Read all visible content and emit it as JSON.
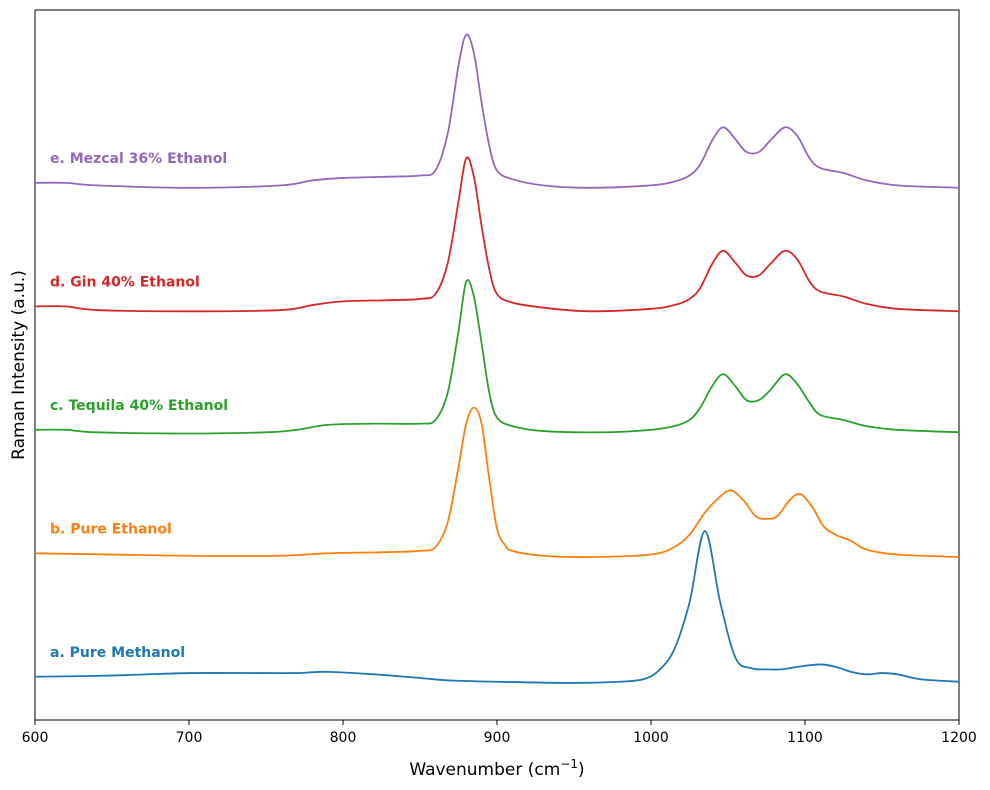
{
  "chart_data": {
    "type": "line",
    "title": "",
    "xlabel": "Wavenumber (cm",
    "xlabel_sup": "−1",
    "xlabel_end": ")",
    "ylabel": "Raman Intensity (a.u.)",
    "xlim": [
      600,
      1200
    ],
    "x_ticks": [
      600,
      700,
      800,
      900,
      1000,
      1100,
      1200
    ],
    "y_ticks_visible": false,
    "grid": false,
    "legend": "none",
    "ylim": [
      -0.35,
      5.4
    ],
    "series": [
      {
        "name": "a. Pure Methanol",
        "color": "#1f77b4",
        "points": [
          [
            600,
            0.0
          ],
          [
            650,
            0.01
          ],
          [
            700,
            0.03
          ],
          [
            750,
            0.03
          ],
          [
            770,
            0.03
          ],
          [
            790,
            0.04
          ],
          [
            820,
            0.02
          ],
          [
            850,
            -0.01
          ],
          [
            870,
            -0.03
          ],
          [
            900,
            -0.04
          ],
          [
            950,
            -0.05
          ],
          [
            980,
            -0.04
          ],
          [
            995,
            -0.02
          ],
          [
            1005,
            0.05
          ],
          [
            1015,
            0.22
          ],
          [
            1025,
            0.6
          ],
          [
            1035,
            1.18
          ],
          [
            1045,
            0.6
          ],
          [
            1055,
            0.15
          ],
          [
            1065,
            0.07
          ],
          [
            1075,
            0.06
          ],
          [
            1085,
            0.06
          ],
          [
            1095,
            0.08
          ],
          [
            1110,
            0.1
          ],
          [
            1120,
            0.08
          ],
          [
            1130,
            0.04
          ],
          [
            1140,
            0.02
          ],
          [
            1150,
            0.03
          ],
          [
            1160,
            0.02
          ],
          [
            1175,
            -0.02
          ],
          [
            1200,
            -0.04
          ]
        ]
      },
      {
        "name": "b. Pure Ethanol",
        "color": "#ff7f0e",
        "points": [
          [
            600,
            1.0
          ],
          [
            650,
            0.99
          ],
          [
            700,
            0.98
          ],
          [
            760,
            0.98
          ],
          [
            790,
            1.0
          ],
          [
            830,
            1.01
          ],
          [
            850,
            1.02
          ],
          [
            860,
            1.05
          ],
          [
            868,
            1.25
          ],
          [
            875,
            1.7
          ],
          [
            880,
            2.05
          ],
          [
            885,
            2.18
          ],
          [
            890,
            2.05
          ],
          [
            895,
            1.6
          ],
          [
            900,
            1.2
          ],
          [
            905,
            1.07
          ],
          [
            910,
            1.02
          ],
          [
            930,
            0.98
          ],
          [
            960,
            0.97
          ],
          [
            1000,
            0.99
          ],
          [
            1015,
            1.05
          ],
          [
            1025,
            1.15
          ],
          [
            1035,
            1.33
          ],
          [
            1045,
            1.46
          ],
          [
            1052,
            1.51
          ],
          [
            1060,
            1.43
          ],
          [
            1068,
            1.3
          ],
          [
            1075,
            1.28
          ],
          [
            1082,
            1.3
          ],
          [
            1090,
            1.43
          ],
          [
            1097,
            1.48
          ],
          [
            1105,
            1.37
          ],
          [
            1112,
            1.22
          ],
          [
            1120,
            1.15
          ],
          [
            1130,
            1.1
          ],
          [
            1140,
            1.03
          ],
          [
            1160,
            0.99
          ],
          [
            1200,
            0.97
          ]
        ]
      },
      {
        "name": "c. Tequila 40% Ethanol",
        "color": "#2ca02c",
        "points": [
          [
            600,
            2.0
          ],
          [
            620,
            2.0
          ],
          [
            640,
            1.98
          ],
          [
            700,
            1.97
          ],
          [
            750,
            1.98
          ],
          [
            770,
            2.0
          ],
          [
            790,
            2.04
          ],
          [
            820,
            2.05
          ],
          [
            850,
            2.05
          ],
          [
            860,
            2.08
          ],
          [
            868,
            2.3
          ],
          [
            875,
            2.8
          ],
          [
            880,
            3.2
          ],
          [
            885,
            3.08
          ],
          [
            890,
            2.7
          ],
          [
            895,
            2.3
          ],
          [
            900,
            2.1
          ],
          [
            910,
            2.03
          ],
          [
            930,
            1.99
          ],
          [
            970,
            1.98
          ],
          [
            1000,
            2.0
          ],
          [
            1015,
            2.03
          ],
          [
            1025,
            2.08
          ],
          [
            1032,
            2.18
          ],
          [
            1040,
            2.36
          ],
          [
            1047,
            2.45
          ],
          [
            1055,
            2.35
          ],
          [
            1062,
            2.24
          ],
          [
            1070,
            2.24
          ],
          [
            1078,
            2.33
          ],
          [
            1087,
            2.45
          ],
          [
            1095,
            2.37
          ],
          [
            1103,
            2.22
          ],
          [
            1110,
            2.12
          ],
          [
            1125,
            2.08
          ],
          [
            1140,
            2.03
          ],
          [
            1160,
            2.0
          ],
          [
            1200,
            1.98
          ]
        ]
      },
      {
        "name": "d. Gin 40% Ethanol",
        "color": "#d62728",
        "points": [
          [
            600,
            3.0
          ],
          [
            620,
            3.0
          ],
          [
            640,
            2.97
          ],
          [
            700,
            2.96
          ],
          [
            760,
            2.97
          ],
          [
            780,
            3.01
          ],
          [
            800,
            3.04
          ],
          [
            830,
            3.05
          ],
          [
            850,
            3.06
          ],
          [
            860,
            3.1
          ],
          [
            868,
            3.35
          ],
          [
            875,
            3.85
          ],
          [
            880,
            4.2
          ],
          [
            885,
            4.05
          ],
          [
            890,
            3.65
          ],
          [
            895,
            3.3
          ],
          [
            900,
            3.1
          ],
          [
            910,
            3.03
          ],
          [
            930,
            2.99
          ],
          [
            960,
            2.96
          ],
          [
            1000,
            2.98
          ],
          [
            1015,
            3.01
          ],
          [
            1025,
            3.06
          ],
          [
            1032,
            3.15
          ],
          [
            1040,
            3.35
          ],
          [
            1047,
            3.45
          ],
          [
            1055,
            3.35
          ],
          [
            1062,
            3.25
          ],
          [
            1070,
            3.25
          ],
          [
            1078,
            3.35
          ],
          [
            1087,
            3.45
          ],
          [
            1095,
            3.38
          ],
          [
            1103,
            3.2
          ],
          [
            1110,
            3.12
          ],
          [
            1125,
            3.08
          ],
          [
            1140,
            3.02
          ],
          [
            1160,
            2.98
          ],
          [
            1200,
            2.96
          ]
        ]
      },
      {
        "name": "e. Mezcal 36% Ethanol",
        "color": "#9467bd",
        "points": [
          [
            600,
            4.0
          ],
          [
            620,
            4.0
          ],
          [
            640,
            3.98
          ],
          [
            700,
            3.96
          ],
          [
            760,
            3.98
          ],
          [
            780,
            4.02
          ],
          [
            800,
            4.04
          ],
          [
            830,
            4.05
          ],
          [
            850,
            4.06
          ],
          [
            860,
            4.1
          ],
          [
            868,
            4.4
          ],
          [
            875,
            4.95
          ],
          [
            880,
            5.2
          ],
          [
            885,
            5.05
          ],
          [
            890,
            4.65
          ],
          [
            895,
            4.3
          ],
          [
            900,
            4.1
          ],
          [
            910,
            4.03
          ],
          [
            930,
            3.98
          ],
          [
            960,
            3.96
          ],
          [
            1000,
            3.98
          ],
          [
            1015,
            4.01
          ],
          [
            1025,
            4.06
          ],
          [
            1032,
            4.15
          ],
          [
            1040,
            4.35
          ],
          [
            1047,
            4.45
          ],
          [
            1055,
            4.35
          ],
          [
            1062,
            4.25
          ],
          [
            1070,
            4.25
          ],
          [
            1078,
            4.35
          ],
          [
            1087,
            4.45
          ],
          [
            1095,
            4.38
          ],
          [
            1103,
            4.2
          ],
          [
            1110,
            4.12
          ],
          [
            1125,
            4.08
          ],
          [
            1140,
            4.02
          ],
          [
            1160,
            3.98
          ],
          [
            1200,
            3.96
          ]
        ]
      }
    ]
  }
}
